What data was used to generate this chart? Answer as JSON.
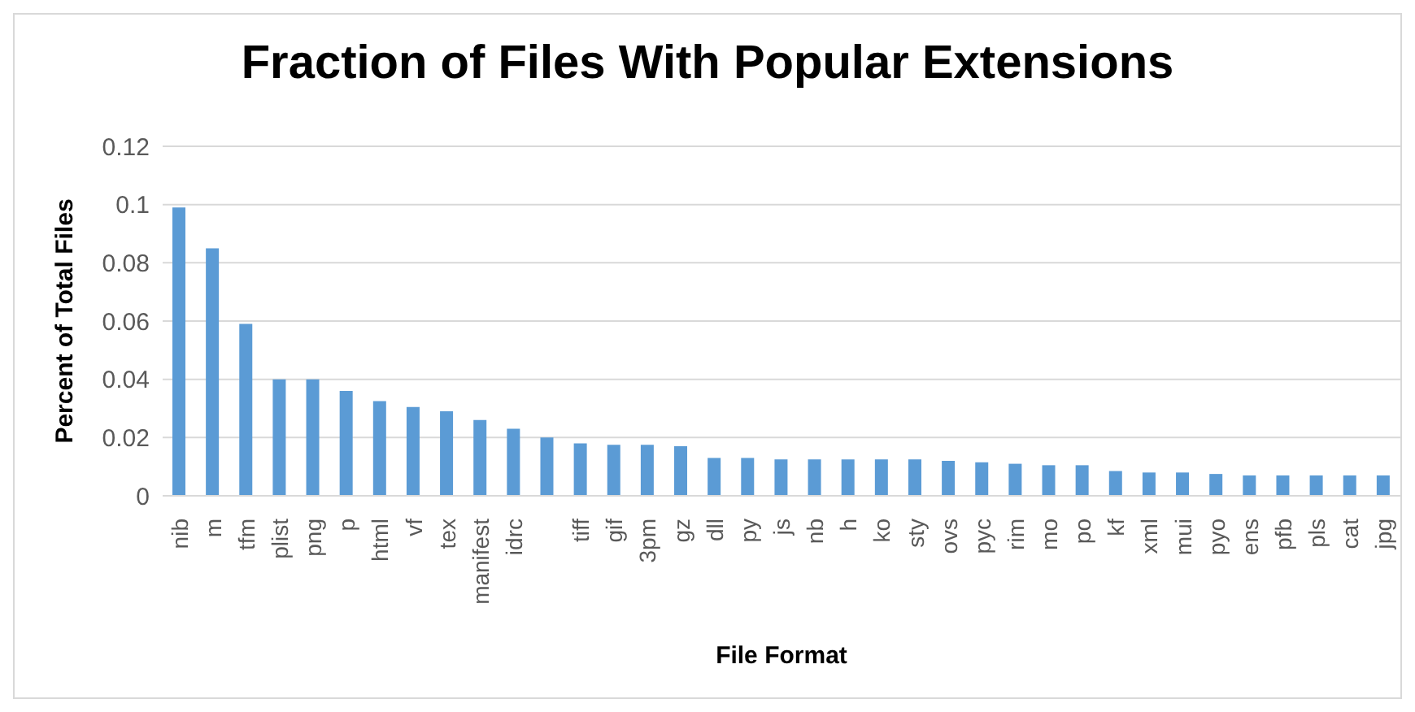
{
  "chart_data": {
    "type": "bar",
    "title": "Fraction of Files With Popular Extensions",
    "xlabel": "File Format",
    "ylabel": "Percent of Total Files",
    "categories": [
      "nib",
      "m",
      "tfm",
      "plist",
      "png",
      "p",
      "html",
      "vf",
      "tex",
      "manifest",
      "idrc",
      null,
      "tiff",
      "gif",
      "3pm",
      "gz",
      "dll",
      "py",
      "js",
      "nb",
      "h",
      "ko",
      "sty",
      "ovs",
      "pyc",
      "rim",
      "mo",
      "po",
      "kf",
      "xml",
      "mui",
      "pyo",
      "ens",
      "pfb",
      "pls",
      "cat",
      "jpg"
    ],
    "values": [
      0.099,
      0.085,
      0.059,
      0.04,
      0.04,
      0.036,
      0.0325,
      0.0305,
      0.029,
      0.026,
      0.023,
      0.02,
      0.018,
      0.0175,
      0.0175,
      0.017,
      0.013,
      0.013,
      0.0125,
      0.0125,
      0.0125,
      0.0125,
      0.0125,
      0.012,
      0.0115,
      0.011,
      0.0105,
      0.0105,
      0.0085,
      0.008,
      0.008,
      0.0075,
      0.007,
      0.007,
      0.007,
      0.007,
      0.007
    ],
    "color": "#5b9bd5",
    "ylim": [
      0,
      0.12
    ],
    "yticks": [
      0,
      0.02,
      0.04,
      0.06,
      0.08,
      0.1,
      0.12
    ],
    "grid": "y"
  }
}
